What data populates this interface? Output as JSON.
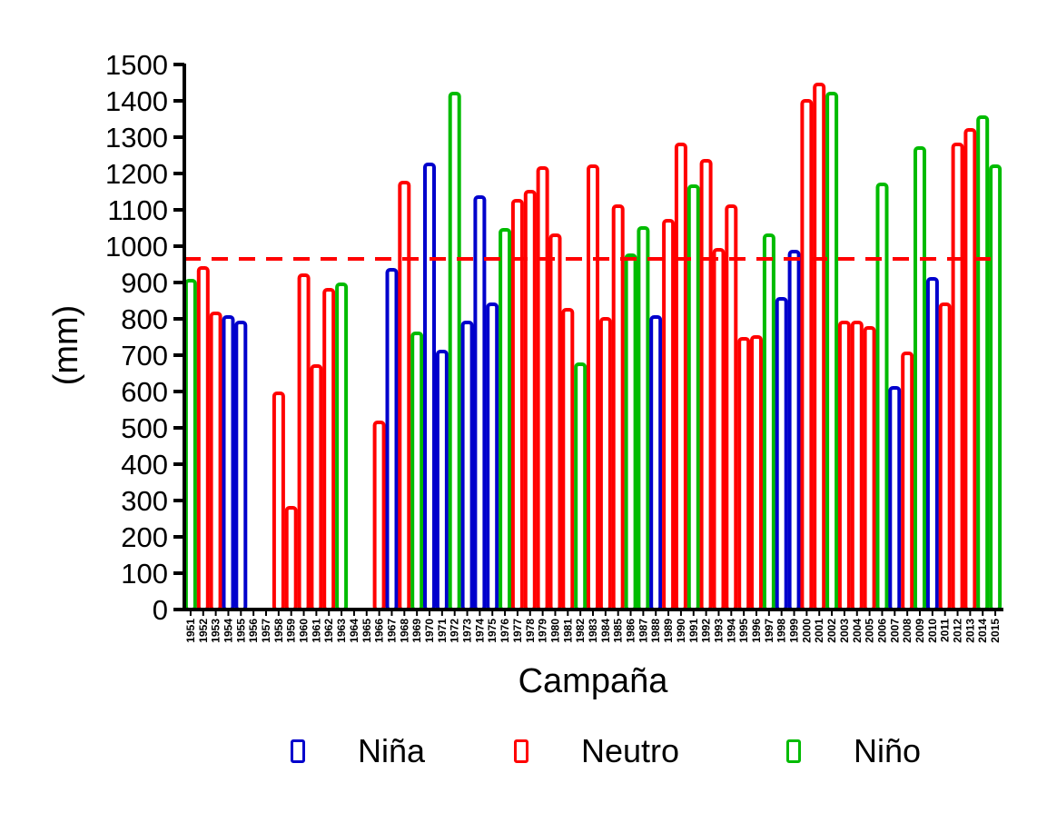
{
  "chart_data": {
    "type": "bar",
    "title": "",
    "xlabel": "Campaña",
    "ylabel": "(mm)",
    "ylim": [
      0,
      1500
    ],
    "yticks": [
      0,
      100,
      200,
      300,
      400,
      500,
      600,
      700,
      800,
      900,
      1000,
      1100,
      1200,
      1300,
      1400,
      1500
    ],
    "reference_line": {
      "value": 965,
      "style": "dashed",
      "color": "#ff0000"
    },
    "grid": false,
    "legend": {
      "position": "bottom",
      "entries": [
        {
          "name": "Niña",
          "color": "#0000cc"
        },
        {
          "name": "Neutro",
          "color": "#ff0000"
        },
        {
          "name": "Niño",
          "color": "#00bb00"
        }
      ]
    },
    "colors": {
      "Niña": "#0000cc",
      "Neutro": "#ff0000",
      "Niño": "#00bb00"
    },
    "categories": [
      "1951",
      "1952",
      "1953",
      "1954",
      "1955",
      "1956",
      "1957",
      "1958",
      "1959",
      "1960",
      "1961",
      "1962",
      "1963",
      "1964",
      "1965",
      "1966",
      "1967",
      "1968",
      "1969",
      "1970",
      "1971",
      "1972",
      "1973",
      "1974",
      "1975",
      "1976",
      "1977",
      "1978",
      "1979",
      "1980",
      "1981",
      "1982",
      "1983",
      "1984",
      "1985",
      "1986",
      "1987",
      "1988",
      "1989",
      "1990",
      "1991",
      "1992",
      "1993",
      "1994",
      "1995",
      "1996",
      "1997",
      "1998",
      "1999",
      "2000",
      "2001",
      "2002",
      "2003",
      "2004",
      "2005",
      "2006",
      "2007",
      "2008",
      "2009",
      "2010",
      "2011",
      "2012",
      "2013",
      "2014",
      "2015"
    ],
    "values": [
      905,
      940,
      815,
      805,
      790,
      null,
      null,
      595,
      280,
      920,
      670,
      880,
      895,
      null,
      null,
      515,
      935,
      1175,
      760,
      1225,
      710,
      1420,
      790,
      1135,
      840,
      1045,
      1125,
      1150,
      1215,
      1030,
      825,
      675,
      1220,
      800,
      1110,
      975,
      1050,
      805,
      1070,
      1280,
      1165,
      1235,
      990,
      1110,
      745,
      750,
      1030,
      855,
      985,
      1400,
      1445,
      1420,
      790,
      790,
      775,
      1170,
      610,
      705,
      1270,
      910,
      840,
      1280,
      1320,
      1355,
      1220
    ],
    "phases": [
      "Niño",
      "Neutro",
      "Neutro",
      "Niña",
      "Niña",
      null,
      null,
      "Neutro",
      "Neutro",
      "Neutro",
      "Neutro",
      "Neutro",
      "Niño",
      null,
      null,
      "Neutro",
      "Niña",
      "Neutro",
      "Niño",
      "Niña",
      "Niña",
      "Niño",
      "Niña",
      "Niña",
      "Niña",
      "Niño",
      "Neutro",
      "Neutro",
      "Neutro",
      "Neutro",
      "Neutro",
      "Niño",
      "Neutro",
      "Neutro",
      "Neutro",
      "Niño",
      "Niño",
      "Niña",
      "Neutro",
      "Neutro",
      "Niño",
      "Neutro",
      "Neutro",
      "Neutro",
      "Neutro",
      "Neutro",
      "Niño",
      "Niña",
      "Niña",
      "Neutro",
      "Neutro",
      "Niño",
      "Neutro",
      "Neutro",
      "Neutro",
      "Niño",
      "Niña",
      "Neutro",
      "Niño",
      "Niña",
      "Neutro",
      "Neutro",
      "Neutro",
      "Niño",
      "Niño"
    ]
  }
}
